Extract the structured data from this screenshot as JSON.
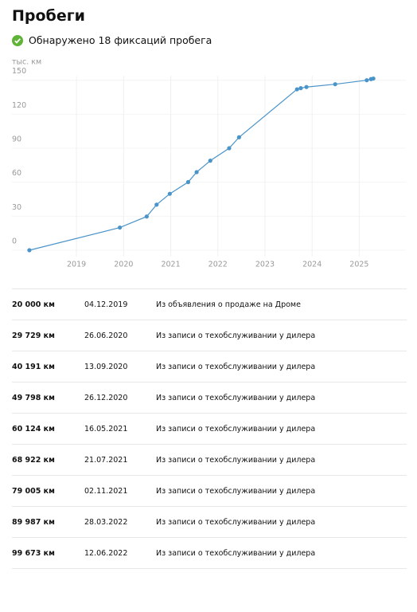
{
  "header": {
    "title": "Пробеги",
    "status": "Обнаружено 18 фиксаций пробега"
  },
  "chart_data": {
    "type": "line",
    "y_label": "тыс. км",
    "x": [
      2018.0,
      2019.92,
      2020.49,
      2020.7,
      2020.98,
      2021.37,
      2021.55,
      2021.84,
      2022.24,
      2022.45,
      2023.68,
      2023.76,
      2023.88,
      2024.49,
      2025.16,
      2025.25,
      2025.3
    ],
    "values": [
      0,
      20,
      29.729,
      40.191,
      49.798,
      60.124,
      68.922,
      79.005,
      89.987,
      99.673,
      142,
      143,
      144,
      146.5,
      150,
      151,
      151.5
    ],
    "color": "#4a94c9",
    "xlim": [
      2017.63,
      2025.99
    ],
    "xticks": [
      2019,
      2020,
      2021,
      2022,
      2023,
      2024,
      2025
    ],
    "ylim": [
      0,
      154
    ],
    "yticks": [
      0,
      30,
      60,
      90,
      120,
      150
    ],
    "grid": true
  },
  "table": {
    "rows": [
      [
        "20 000 км",
        "04.12.2019",
        "Из объявления о продаже на Дроме"
      ],
      [
        "29 729 км",
        "26.06.2020",
        "Из записи о техобслуживании у дилера"
      ],
      [
        "40 191 км",
        "13.09.2020",
        "Из записи о техобслуживании у дилера"
      ],
      [
        "49 798 км",
        "26.12.2020",
        "Из записи о техобслуживании у дилера"
      ],
      [
        "60 124 км",
        "16.05.2021",
        "Из записи о техобслуживании у дилера"
      ],
      [
        "68 922 км",
        "21.07.2021",
        "Из записи о техобслуживании у дилера"
      ],
      [
        "79 005 км",
        "02.11.2021",
        "Из записи о техобслуживании у дилера"
      ],
      [
        "89 987 км",
        "28.03.2022",
        "Из записи о техобслуживании у дилера"
      ],
      [
        "99 673 км",
        "12.06.2022",
        "Из записи о техобслуживании у дилера"
      ]
    ]
  }
}
